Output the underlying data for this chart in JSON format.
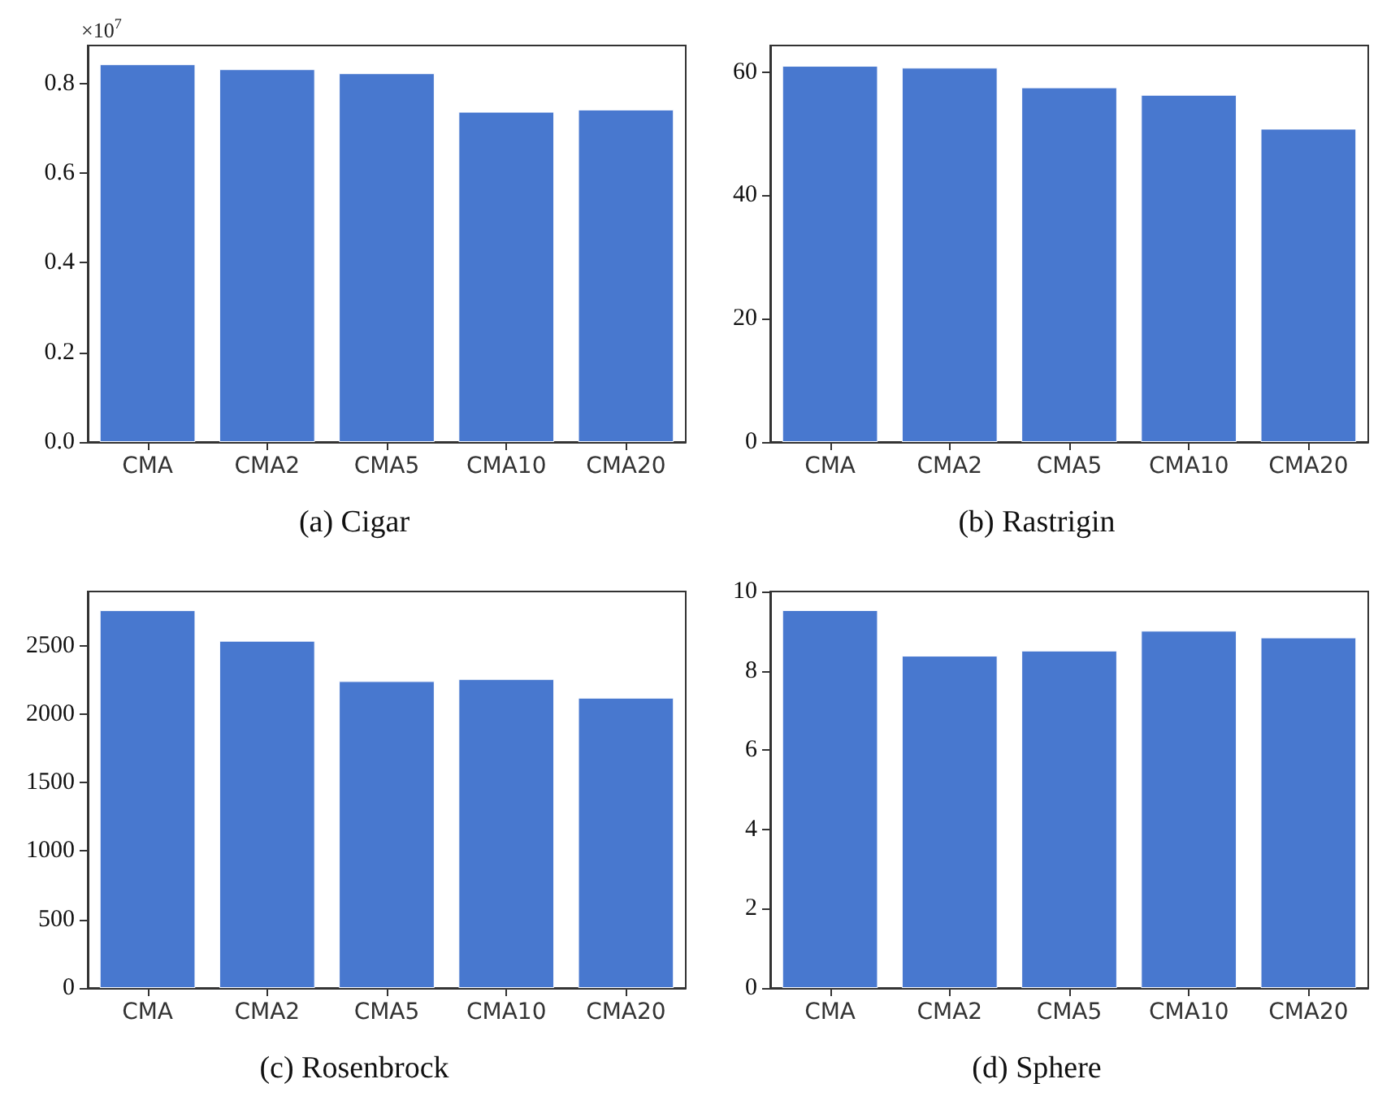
{
  "chart_data": [
    {
      "type": "bar",
      "title": "(a) Cigar",
      "categories": [
        "CMA",
        "CMA2",
        "CMA5",
        "CMA10",
        "CMA20"
      ],
      "values": [
        0.843,
        0.832,
        0.823,
        0.737,
        0.742
      ],
      "color": "#4878cf",
      "ylim": [
        0,
        0.885
      ],
      "yticks": [
        {
          "value": 0,
          "label": "0.0"
        },
        0.2,
        0.4,
        0.6,
        0.8
      ],
      "annotations": [
        "×10$^{7}$"
      ]
    },
    {
      "type": "bar",
      "title": "(b) Rastrigin",
      "categories": [
        "CMA",
        "CMA2",
        "CMA5",
        "CMA10",
        "CMA20"
      ],
      "values": [
        61.0,
        60.7,
        57.5,
        56.3,
        50.8
      ],
      "color": "#4878cf",
      "ylim": [
        0,
        64.3
      ],
      "yticks": [
        0,
        20,
        40,
        60
      ]
    },
    {
      "type": "bar",
      "title": "(c) Rosenbrock",
      "categories": [
        "CMA",
        "CMA2",
        "CMA5",
        "CMA10",
        "CMA20"
      ],
      "values": [
        2759,
        2536,
        2241,
        2257,
        2120
      ],
      "color": "#4878cf",
      "ylim": [
        0,
        2896
      ],
      "yticks": [
        0,
        500,
        1000,
        1500,
        2000,
        2500
      ]
    },
    {
      "type": "bar",
      "title": "(d) Sphere",
      "categories": [
        "CMA",
        "CMA2",
        "CMA5",
        "CMA10",
        "CMA20"
      ],
      "values": [
        9.53,
        8.38,
        8.51,
        9.01,
        8.84
      ],
      "color": "#4878cf",
      "ylim": [
        0,
        10
      ],
      "yticks": [
        0,
        2,
        4,
        6,
        8,
        10
      ]
    }
  ]
}
